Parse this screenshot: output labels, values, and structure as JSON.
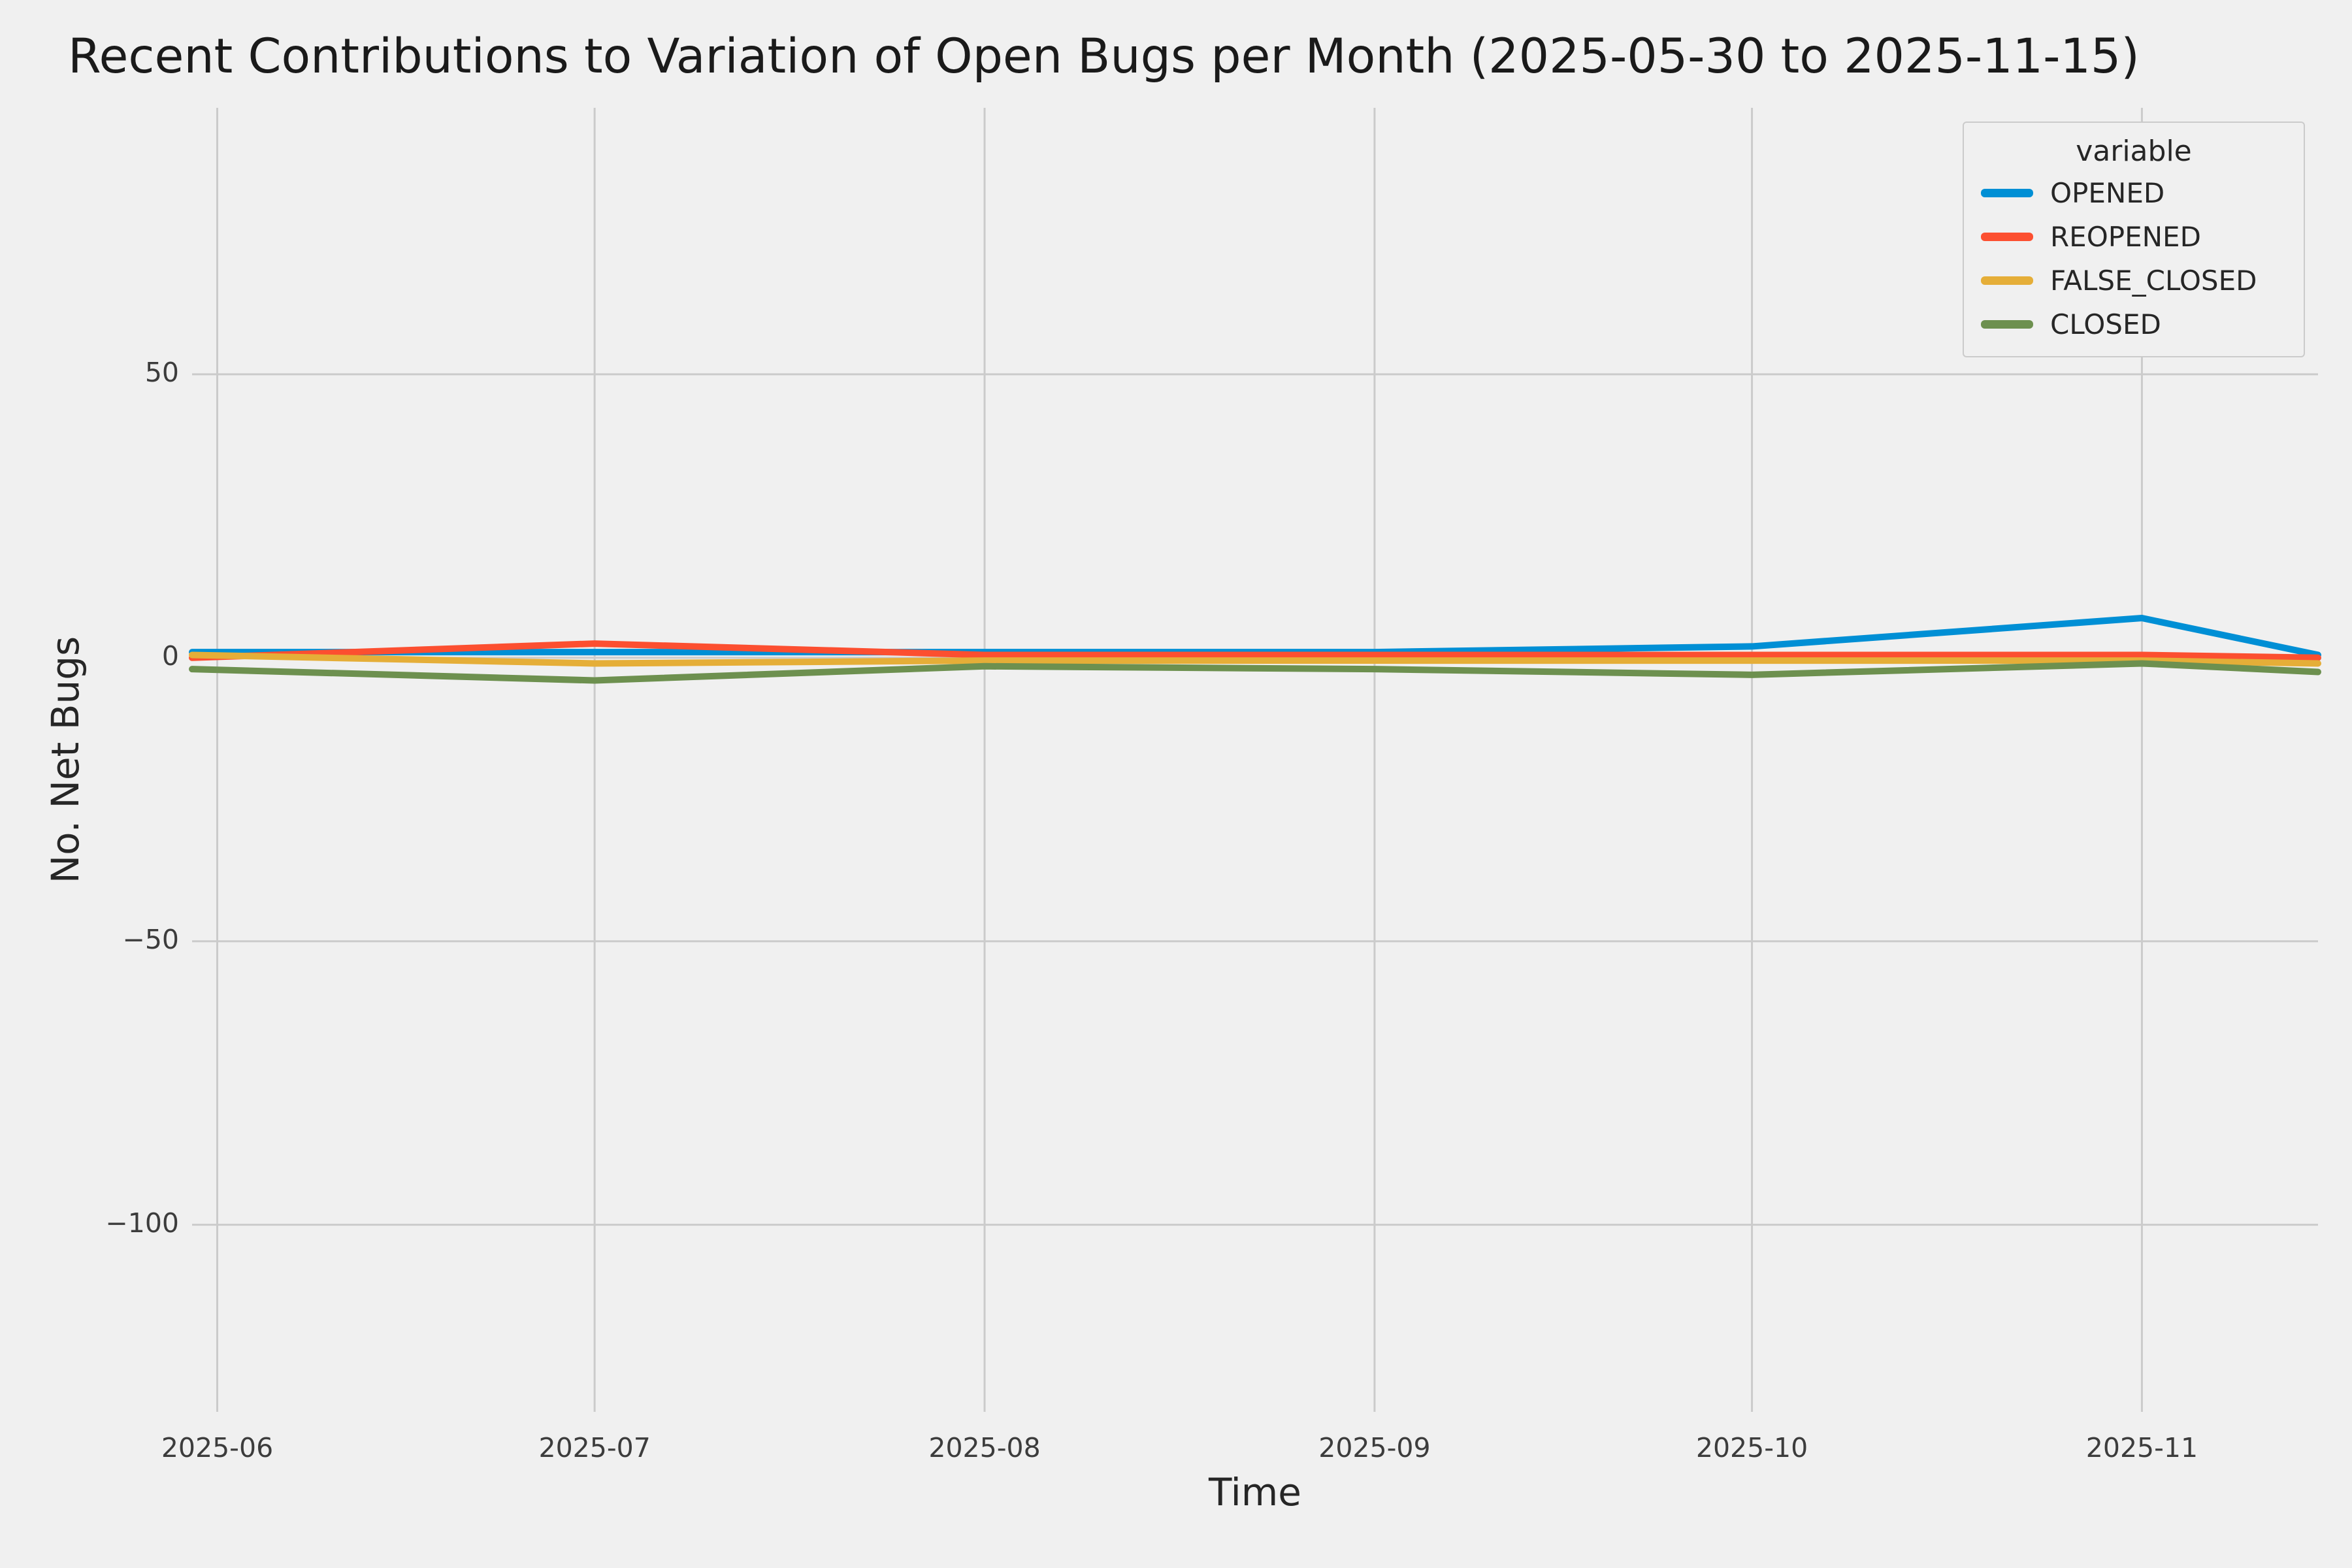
{
  "chart_data": {
    "type": "line",
    "title": "Recent Contributions to Variation of Open Bugs per Month (2025-05-30 to 2025-11-15)",
    "xlabel": "Time",
    "ylabel": "No. Net Bugs",
    "legend_title": "variable",
    "legend_position": "upper right",
    "grid": true,
    "x_unit": "days since 2025-05-30",
    "x_domain": [
      0,
      169
    ],
    "y_domain": [
      -133,
      97
    ],
    "x_ticks": [
      {
        "label": "2025-06",
        "d": 2
      },
      {
        "label": "2025-07",
        "d": 32
      },
      {
        "label": "2025-08",
        "d": 63
      },
      {
        "label": "2025-09",
        "d": 94
      },
      {
        "label": "2025-10",
        "d": 124
      },
      {
        "label": "2025-11",
        "d": 155
      }
    ],
    "y_ticks": [
      {
        "label": "50",
        "v": 50
      },
      {
        "label": "0",
        "v": 0
      },
      {
        "label": "−50",
        "v": -50
      },
      {
        "label": "−100",
        "v": -100
      }
    ],
    "x_days": [
      0,
      32,
      63,
      94,
      124,
      155,
      169
    ],
    "x_dates": [
      "2025-05-30",
      "2025-07-01",
      "2025-08-01",
      "2025-09-01",
      "2025-10-01",
      "2025-11-01",
      "2025-11-15"
    ],
    "series": [
      {
        "name": "OPENED",
        "color": "#008fd5",
        "values": [
          1,
          1,
          1,
          1,
          2,
          7,
          0.5
        ]
      },
      {
        "name": "REOPENED",
        "color": "#fc4f30",
        "values": [
          0,
          2.5,
          0.5,
          0.5,
          0.5,
          0.5,
          0
        ]
      },
      {
        "name": "FALSE_CLOSED",
        "color": "#e5ae38",
        "values": [
          0.5,
          -1,
          -0.5,
          -0.5,
          -0.5,
          -0.5,
          -1
        ]
      },
      {
        "name": "CLOSED",
        "color": "#6d904f",
        "values": [
          -2,
          -4,
          -1.5,
          -2,
          -3,
          -1,
          -2.5
        ]
      }
    ],
    "styles": {
      "background": "#f0f0f0",
      "grid_color": "#cbcbcb",
      "text_color": "#262626",
      "line_width": 10
    }
  }
}
